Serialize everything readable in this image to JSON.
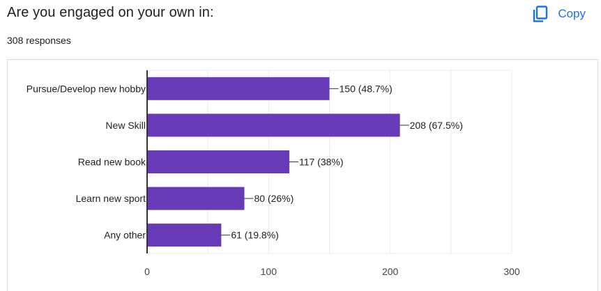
{
  "question": {
    "title": "Are you engaged on your own in:",
    "responses": "308 responses"
  },
  "toolbar": {
    "copy_label": "Copy",
    "copy_icon": "copy-icon"
  },
  "colors": {
    "bar": "#673ab7",
    "accent": "#1a73e8",
    "grid": "#ececec",
    "axis": "#333333",
    "text": "#222222"
  },
  "chart_data": {
    "type": "bar",
    "orientation": "horizontal",
    "categories": [
      "Pursue/Develop new hobby",
      "New Skill",
      "Read new book",
      "Learn new sport",
      "Any other"
    ],
    "values": [
      150,
      208,
      117,
      80,
      61
    ],
    "data_labels": [
      "150 (48.7%)",
      "208 (67.5%)",
      "117 (38%)",
      "80 (26%)",
      "61 (19.8%)"
    ],
    "xlim": [
      0,
      300
    ],
    "xticks": [
      0,
      100,
      200,
      300
    ],
    "xtick_labels": [
      "0",
      "100",
      "200",
      "300"
    ],
    "grid": true
  }
}
